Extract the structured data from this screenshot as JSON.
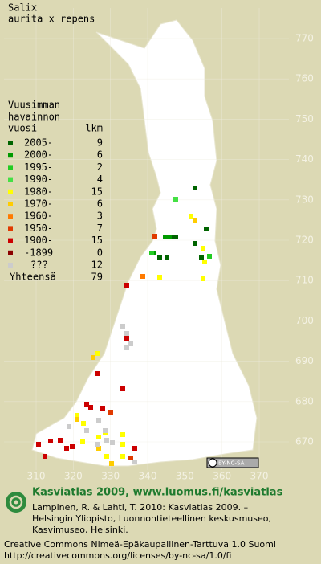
{
  "title": [
    "Salix",
    "aurita x repens"
  ],
  "legend": {
    "heading": [
      "Vuusimman",
      "havainnon"
    ],
    "col_headers": [
      "vuosi",
      "lkm"
    ],
    "rows": [
      {
        "label": "2005-",
        "count": 9,
        "color": "#006400"
      },
      {
        "label": "2000-",
        "count": 6,
        "color": "#009a00"
      },
      {
        "label": "1995-",
        "count": 2,
        "color": "#22cc22"
      },
      {
        "label": "1990-",
        "count": 4,
        "color": "#44e044"
      },
      {
        "label": "1980-",
        "count": 15,
        "color": "#ffff00"
      },
      {
        "label": "1970-",
        "count": 6,
        "color": "#ffcc00"
      },
      {
        "label": "1960-",
        "count": 3,
        "color": "#ff7a00"
      },
      {
        "label": "1950-",
        "count": 7,
        "color": "#e03a00"
      },
      {
        "label": "1900-",
        "count": 15,
        "color": "#cc0000"
      },
      {
        "label": "-1899",
        "count": 0,
        "color": "#8b0000"
      },
      {
        "label": "???",
        "count": 12,
        "color": "#cccccc"
      }
    ],
    "total": {
      "label": "Yhteensä",
      "count": 79
    }
  },
  "map": {
    "xticks": [
      310,
      320,
      330,
      340,
      350,
      360,
      370
    ],
    "yticks": [
      670,
      680,
      690,
      700,
      710,
      720,
      730,
      740,
      750,
      760,
      770
    ]
  },
  "badge": "BY-NC-SA",
  "footer": {
    "headline": "Kasviatlas 2009, www.luomus.fi/kasviatlas",
    "citation": [
      "Lampinen, R. & Lahti, T. 2010: Kasviatlas 2009. –",
      "Helsingin Yliopisto, Luonnontieteellinen keskusmuseo,",
      "Kasvimuseo, Helsinki."
    ],
    "license": [
      "Creative Commons Nimeä-Epäkaupallinen-Tarttuva 1.0 Suomi",
      "http://creativecommons.org/licenses/by-nc-sa/1.0/fi"
    ]
  }
}
